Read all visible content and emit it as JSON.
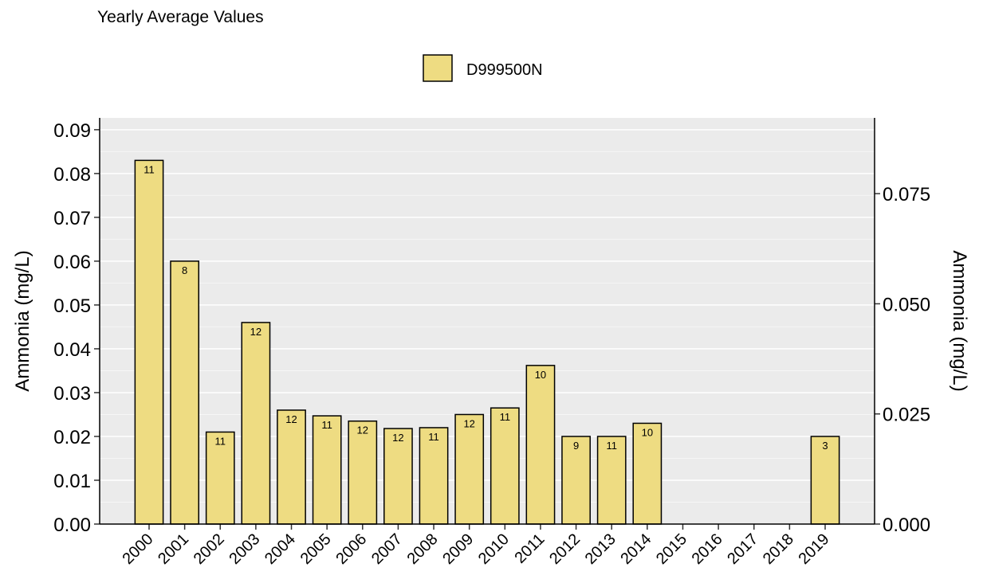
{
  "chart_data": {
    "type": "bar",
    "title": "Yearly Average Values",
    "categories": [
      "2000",
      "2001",
      "2002",
      "2003",
      "2004",
      "2005",
      "2006",
      "2007",
      "2008",
      "2009",
      "2010",
      "2011",
      "2012",
      "2013",
      "2014",
      "2015",
      "2016",
      "2017",
      "2018",
      "2019"
    ],
    "series": [
      {
        "name": "D999500N",
        "color": "#eedc82",
        "values": [
          0.083,
          0.06,
          0.021,
          0.046,
          0.026,
          0.0247,
          0.0235,
          0.0218,
          0.022,
          0.025,
          0.0265,
          0.0362,
          0.02,
          0.02,
          0.023,
          null,
          null,
          null,
          null,
          0.02
        ],
        "counts": [
          11,
          8,
          11,
          12,
          12,
          11,
          12,
          12,
          11,
          12,
          11,
          10,
          9,
          11,
          10,
          null,
          null,
          null,
          null,
          3
        ]
      }
    ],
    "ylabel": "Ammonia (mg/L)",
    "y2label": "Ammonia (mg/L)",
    "ylim": [
      0,
      0.0927
    ],
    "yticks": [
      {
        "value": 0,
        "label": "0.00"
      },
      0.01,
      0.02,
      0.03,
      0.04,
      0.05,
      0.06,
      0.07,
      0.08,
      0.09
    ],
    "y2lim": [
      0,
      0.0922
    ],
    "y2ticks": [
      {
        "value": 0,
        "label": "0.000"
      },
      0.025,
      {
        "value": 0.05,
        "label": "0.050"
      },
      0.075
    ],
    "grid": true
  }
}
